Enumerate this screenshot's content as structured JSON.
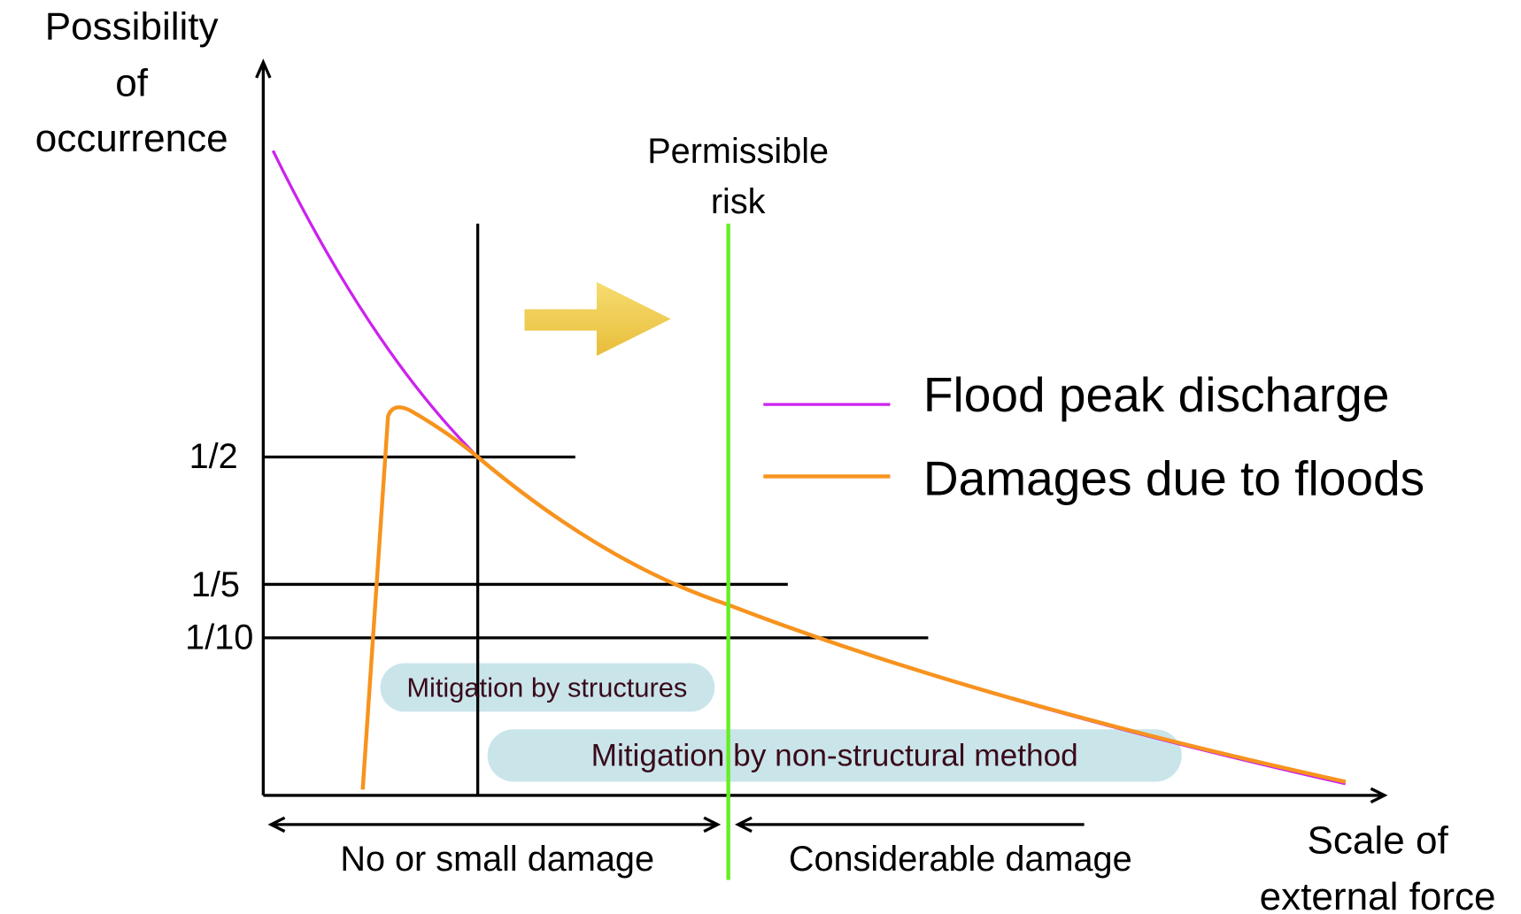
{
  "y_axis_label": [
    "Possibility",
    "of",
    "occurrence"
  ],
  "x_axis_label": [
    "Scale of",
    "external force"
  ],
  "threshold_label": [
    "Permissible",
    "risk"
  ],
  "levels": [
    "1/2",
    "1/5",
    "1/10"
  ],
  "legend": [
    "Flood peak discharge",
    "Damages due to floods"
  ],
  "boxes": [
    "Mitigation by structures",
    "Mitigation by non-structural method"
  ],
  "ranges": [
    "No or small damage",
    "Considerable damage"
  ]
}
